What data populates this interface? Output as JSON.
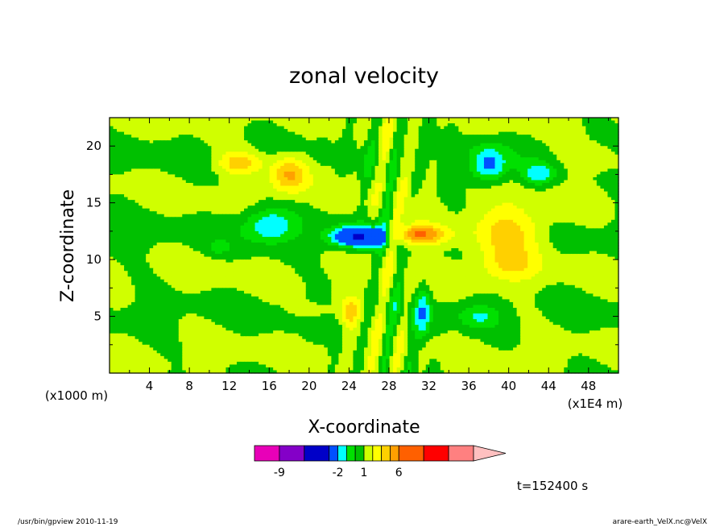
{
  "chart_data": {
    "type": "heatmap",
    "title": "zonal velocity",
    "xlabel": "X-coordinate",
    "ylabel": "Z-coordinate",
    "x_unit_label": "(x1E4 m)",
    "y_unit_label": "(x1000 m)",
    "xlim": [
      0,
      51
    ],
    "ylim": [
      0,
      22.5
    ],
    "x_ticks": [
      4,
      8,
      12,
      16,
      20,
      24,
      28,
      32,
      36,
      40,
      44,
      48
    ],
    "y_ticks": [
      5,
      10,
      15,
      20
    ],
    "time_label": "t=152400 s",
    "colorbar": {
      "levels": [
        -12,
        -9,
        -6,
        -3,
        -2,
        -1,
        0,
        1,
        2,
        3,
        4,
        6,
        9,
        12
      ],
      "labels": [
        "-9",
        "-2",
        "1",
        "6"
      ],
      "colors": [
        "#e800b8",
        "#8400c8",
        "#0000c8",
        "#0050ff",
        "#00ffff",
        "#00e000",
        "#00c000",
        "#d0ff00",
        "#ffff00",
        "#ffd000",
        "#ffa000",
        "#ff6000",
        "#ff0000",
        "#ff8080",
        "#ffc0c0"
      ]
    },
    "features": [
      {
        "x": 18,
        "z": 17.5,
        "sx": 1.8,
        "sz": 1.6,
        "u": 3.2
      },
      {
        "x": 13,
        "z": 18.5,
        "sx": 2.2,
        "sz": 1.0,
        "u": 2.6
      },
      {
        "x": 38,
        "z": 18.3,
        "sx": 1.8,
        "sz": 1.6,
        "u": -3.5
      },
      {
        "x": 43,
        "z": 17.5,
        "sx": 1.6,
        "sz": 1.0,
        "u": -2.6
      },
      {
        "x": 16,
        "z": 13.0,
        "sx": 2.6,
        "sz": 1.5,
        "u": -3.0
      },
      {
        "x": 25,
        "z": 12.0,
        "sx": 2.8,
        "sz": 0.9,
        "u": -6.0
      },
      {
        "x": 31,
        "z": 12.2,
        "sx": 2.8,
        "sz": 0.9,
        "u": 4.5
      },
      {
        "x": 40,
        "z": 12.5,
        "sx": 3.8,
        "sz": 2.0,
        "u": 2.7
      },
      {
        "x": 24,
        "z": 5.5,
        "sx": 1.0,
        "sz": 1.4,
        "u": 2.5
      },
      {
        "x": 31.5,
        "z": 5.0,
        "sx": 0.8,
        "sz": 2.5,
        "u": -2.4
      },
      {
        "x": 37,
        "z": 5.0,
        "sx": 2.0,
        "sz": 1.0,
        "u": -1.7
      },
      {
        "x": 40,
        "z": 9.5,
        "sx": 3.0,
        "sz": 1.5,
        "u": 1.8
      },
      {
        "x": 11,
        "z": 11.0,
        "sx": 1.0,
        "sz": 0.5,
        "u": -1.2
      },
      {
        "x": 20,
        "z": 5.5,
        "sx": 1.5,
        "sz": 0.6,
        "u": 1.2
      },
      {
        "x": 48,
        "z": 19.0,
        "sx": 3.0,
        "sz": 1.2,
        "u": 1.0
      }
    ]
  },
  "footer": {
    "left": "/usr/bin/gpview   2010-11-19",
    "right": "arare-earth_VelX.nc@VelX"
  }
}
